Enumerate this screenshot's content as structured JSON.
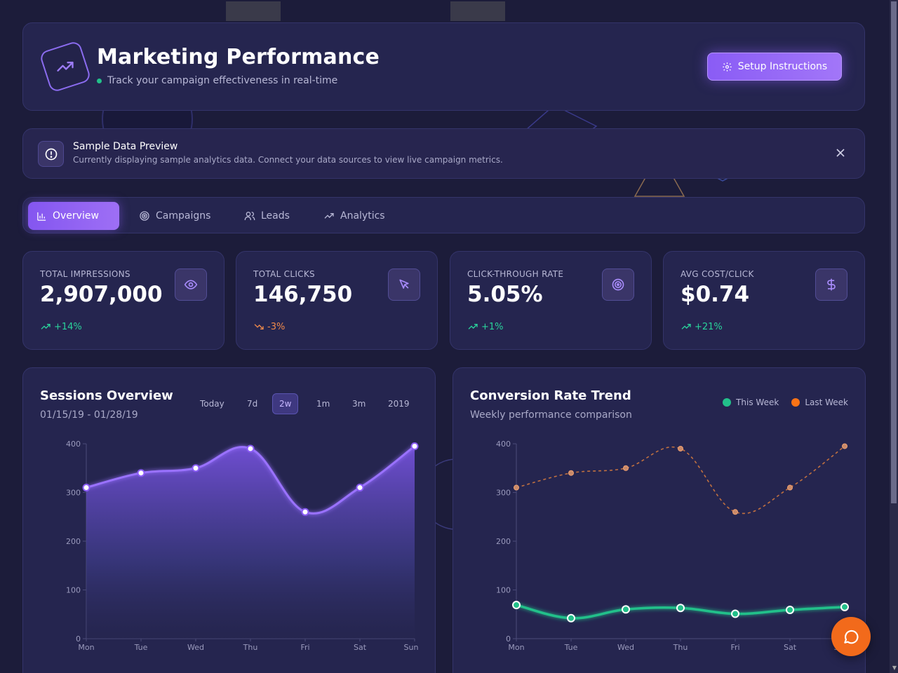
{
  "header": {
    "title": "Marketing Performance",
    "subtitle": "Track your campaign effectiveness in real-time",
    "setup_label": "Setup Instructions"
  },
  "alert": {
    "title": "Sample Data Preview",
    "description": "Currently displaying sample analytics data. Connect your data sources to view live campaign metrics."
  },
  "tabs": [
    {
      "label": "Overview",
      "icon": "bar-chart-icon",
      "active": true
    },
    {
      "label": "Campaigns",
      "icon": "target-icon",
      "active": false
    },
    {
      "label": "Leads",
      "icon": "users-icon",
      "active": false
    },
    {
      "label": "Analytics",
      "icon": "trending-up-icon",
      "active": false
    }
  ],
  "kpis": [
    {
      "label": "TOTAL IMPRESSIONS",
      "value": "2,907,000",
      "change": "+14%",
      "trend": "up",
      "icon": "eye-icon"
    },
    {
      "label": "TOTAL CLICKS",
      "value": "146,750",
      "change": "-3%",
      "trend": "down",
      "icon": "cursor-icon"
    },
    {
      "label": "CLICK-THROUGH RATE",
      "value": "5.05%",
      "change": "+1%",
      "trend": "up",
      "icon": "target-icon"
    },
    {
      "label": "AVG COST/CLICK",
      "value": "$0.74",
      "change": "+21%",
      "trend": "up",
      "icon": "dollar-icon"
    }
  ],
  "colors": {
    "accent": "#8b5cf6",
    "up": "#2ad39b",
    "down": "#f08a4b",
    "this_week": "#22c08a",
    "last_week": "#f97316"
  },
  "sessions": {
    "title": "Sessions Overview",
    "date_range": "01/15/19 - 01/28/19",
    "ranges": [
      "Today",
      "7d",
      "2w",
      "1m",
      "3m",
      "2019"
    ],
    "active_range": "2w"
  },
  "conversion": {
    "title": "Conversion Rate Trend",
    "subtitle": "Weekly performance comparison",
    "legend": [
      "This Week",
      "Last Week"
    ]
  },
  "chart_data": [
    {
      "type": "area",
      "title": "Sessions Overview",
      "categories": [
        "Mon",
        "Tue",
        "Wed",
        "Thu",
        "Fri",
        "Sat",
        "Sun"
      ],
      "values": [
        310,
        340,
        350,
        390,
        260,
        310,
        395
      ],
      "yticks": [
        0,
        100,
        200,
        300,
        400
      ],
      "ylim": [
        0,
        400
      ],
      "grid": false
    },
    {
      "type": "line",
      "title": "Conversion Rate Trend",
      "categories": [
        "Mon",
        "Tue",
        "Wed",
        "Thu",
        "Fri",
        "Sat",
        "Sun"
      ],
      "series": [
        {
          "name": "This Week",
          "values": [
            69,
            42,
            60,
            63,
            51,
            59,
            65
          ]
        },
        {
          "name": "Last Week",
          "values": [
            310,
            340,
            350,
            390,
            260,
            310,
            395
          ]
        }
      ],
      "yticks": [
        0,
        100,
        200,
        300,
        400
      ],
      "ylim": [
        0,
        400
      ],
      "legend": "top-right",
      "grid": false
    }
  ]
}
